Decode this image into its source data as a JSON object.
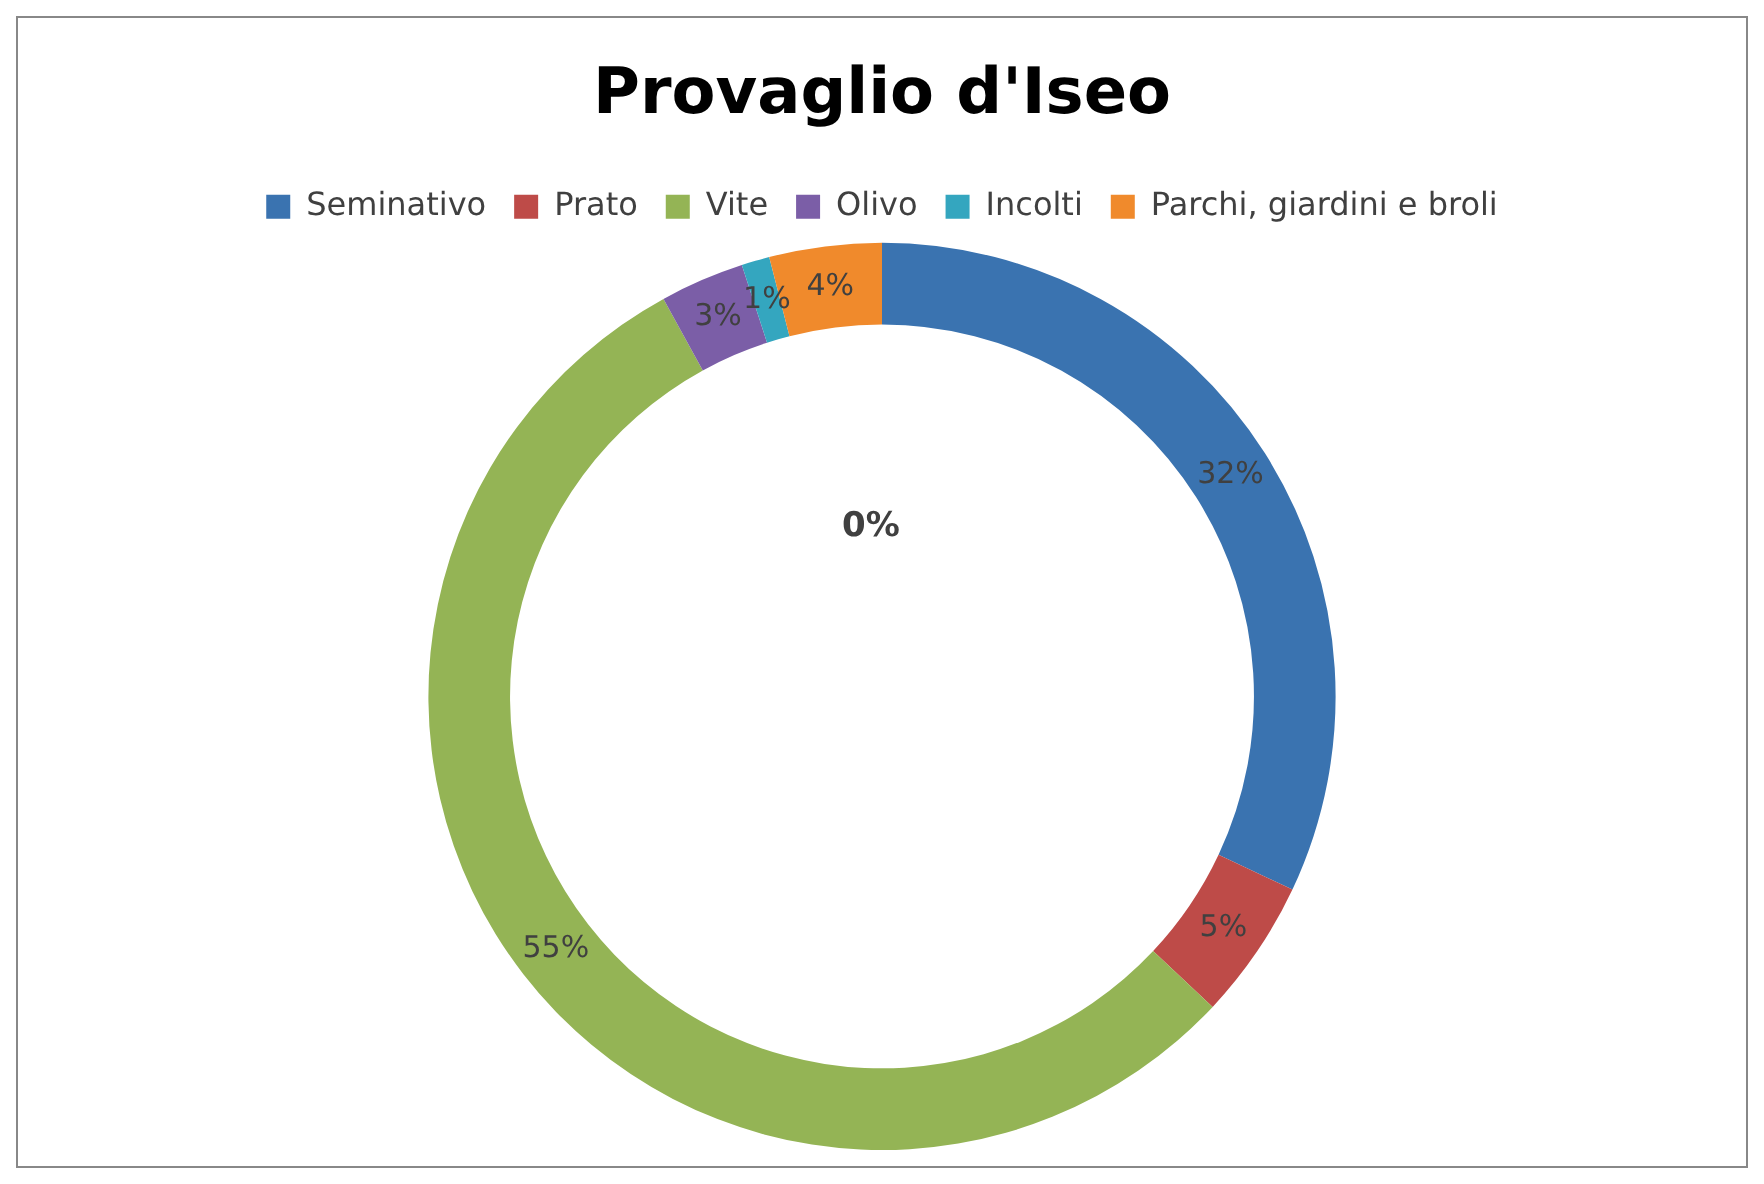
{
  "chart_data": {
    "type": "donut",
    "title": "Provaglio d'Iseo",
    "categories": [
      "Seminativo",
      "Prato",
      "Vite",
      "Olivo",
      "Incolti",
      "Parchi, giardini e broli"
    ],
    "values": [
      32,
      5,
      55,
      3,
      1,
      4
    ],
    "colors": [
      "#3a73b0",
      "#be4b48",
      "#94b455",
      "#7b5ea7",
      "#34a6bf",
      "#f08a2c"
    ],
    "value_labels": [
      "32%",
      "5%",
      "55%",
      "3%",
      "1%",
      "4%"
    ],
    "legend": "top",
    "annotations": [
      "0%"
    ]
  }
}
